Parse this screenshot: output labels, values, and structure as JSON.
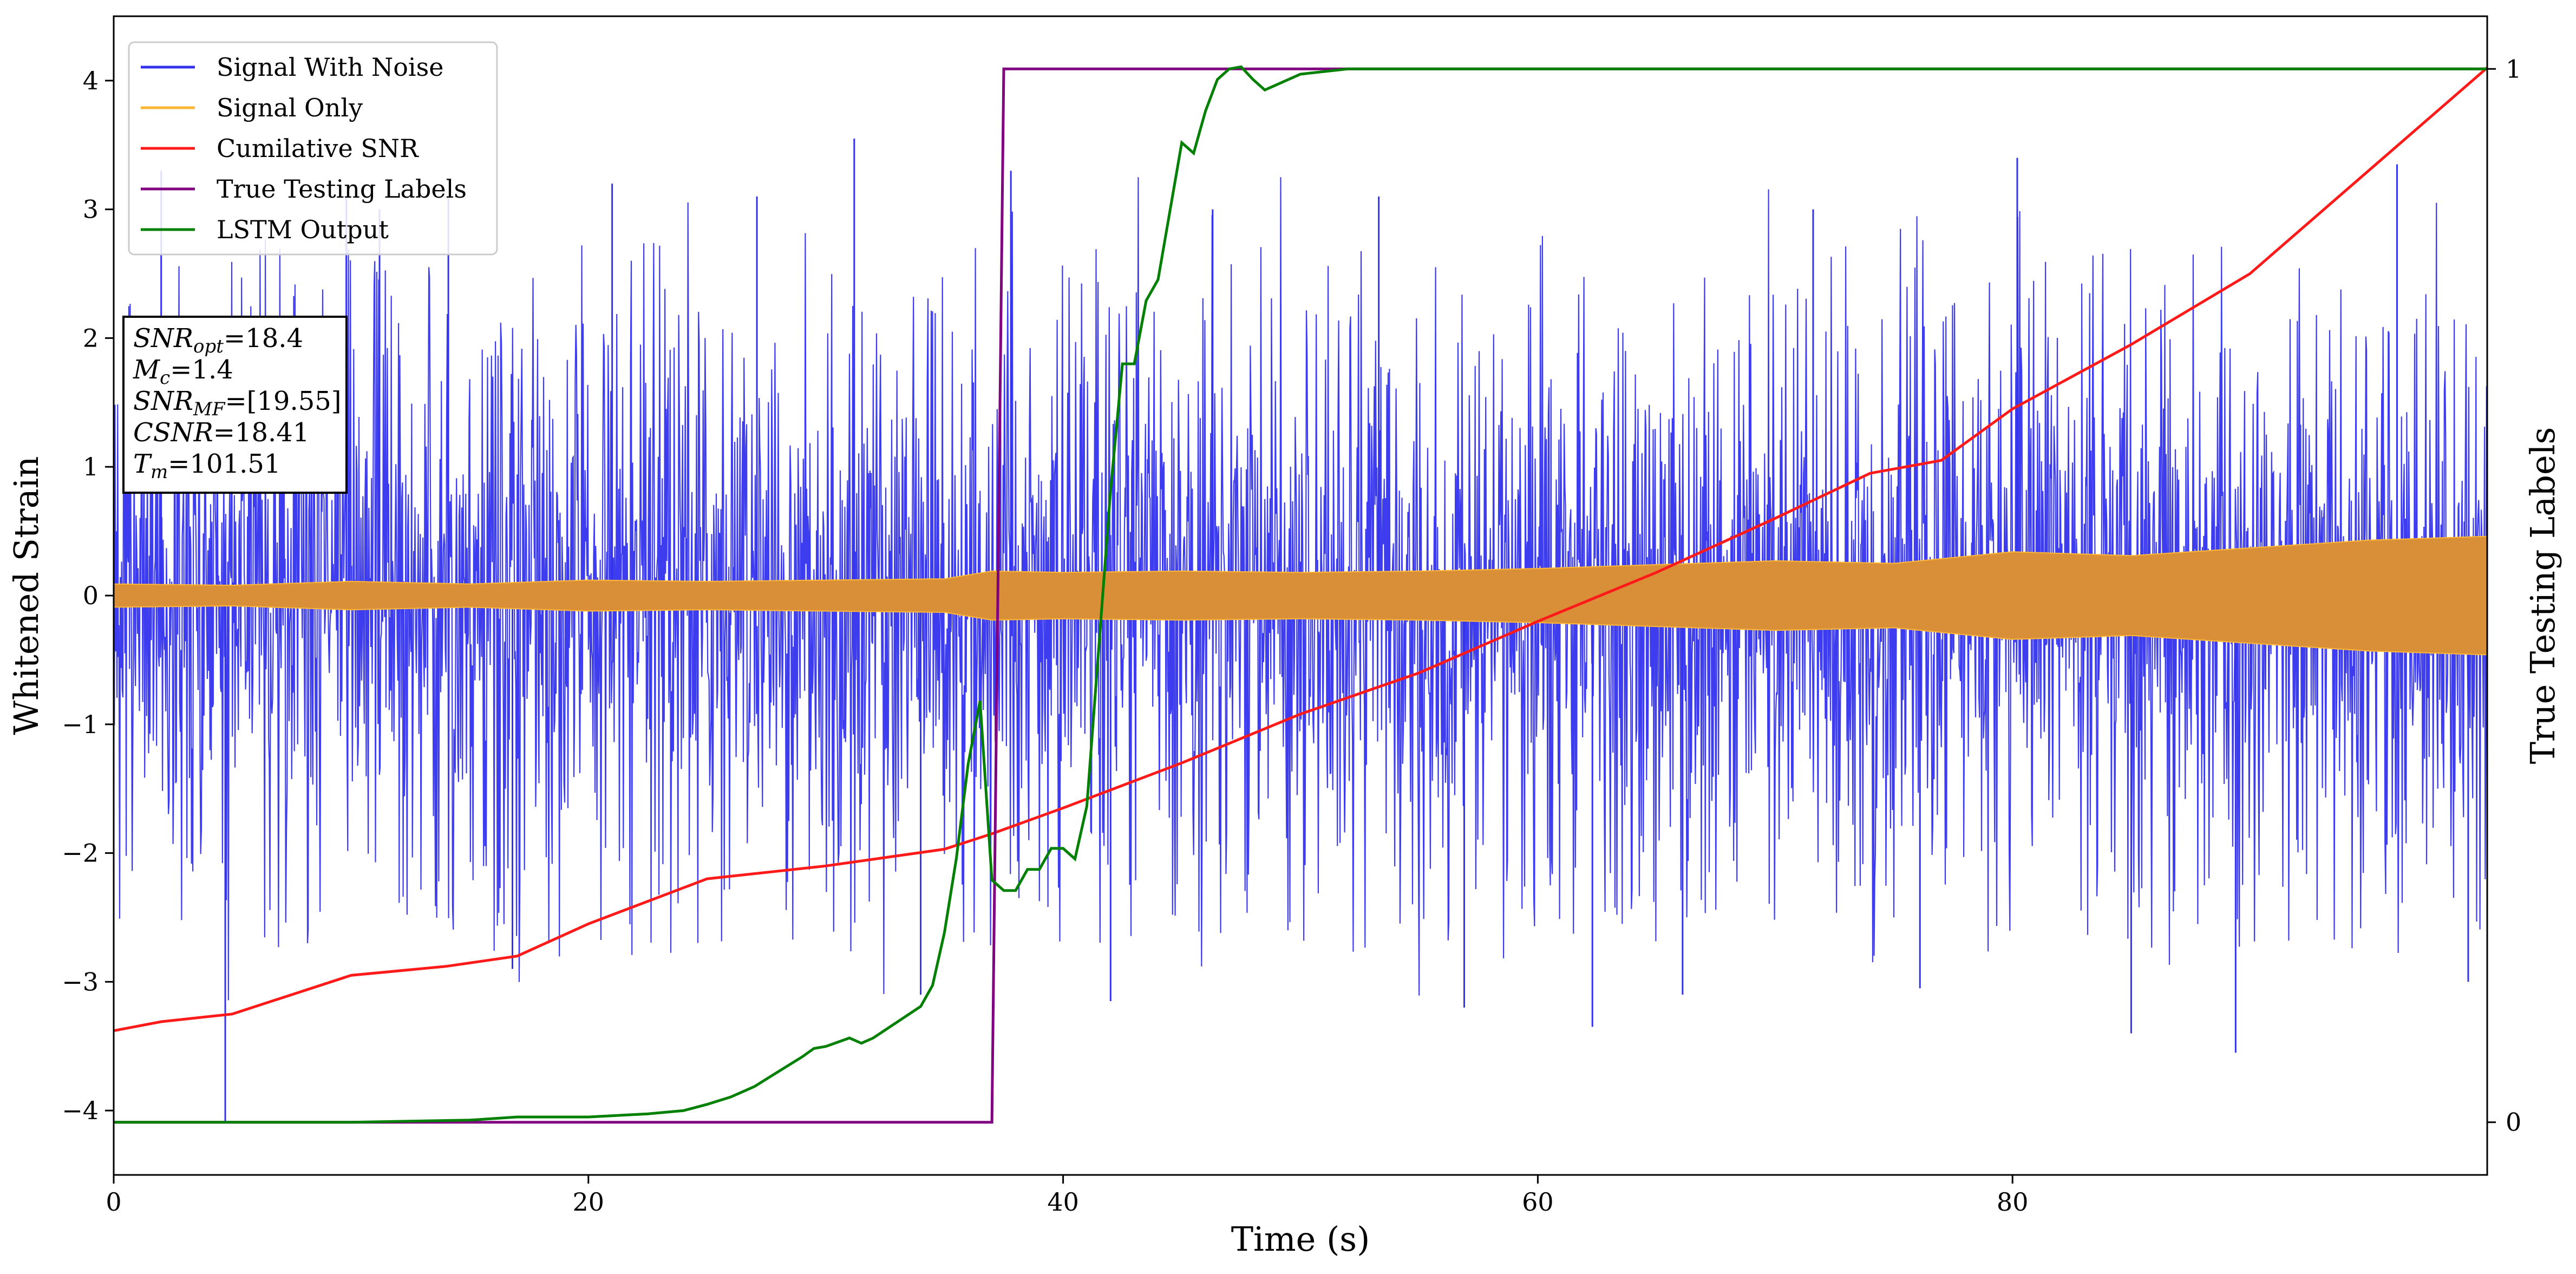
{
  "chart_data": {
    "type": "line",
    "xlabel": "Time (s)",
    "ylabel_left": "Whitened Strain",
    "ylabel_right": "True Testing Labels",
    "xlim": [
      0,
      100
    ],
    "ylim_left": [
      -4.5,
      4.5
    ],
    "ylim_right": [
      -0.05,
      1.05
    ],
    "x_ticks": [
      0,
      20,
      40,
      60,
      80
    ],
    "x_tick_labels": [
      "0",
      "20",
      "40",
      "60",
      "80"
    ],
    "y_ticks_left": [
      -4,
      -3,
      -2,
      -1,
      0,
      1,
      2,
      3,
      4
    ],
    "y_tick_labels_left": [
      "−4",
      "−3",
      "−2",
      "−1",
      "0",
      "1",
      "2",
      "3",
      "4"
    ],
    "y_ticks_right": [
      0,
      1
    ],
    "y_tick_labels_right": [
      "0",
      "1"
    ],
    "grid": false,
    "legend_position": "top-left",
    "colors": {
      "signal_with_noise": "#3333ee",
      "signal_only": "#ffb733",
      "signal_only_fill": "#d88f38",
      "cumulative_snr": "#ff1a1a",
      "true_labels": "#800080",
      "lstm_output": "#008000"
    },
    "legend": [
      {
        "label": "Signal With Noise",
        "color": "#3333ee"
      },
      {
        "label": "Signal Only",
        "color": "#ffb733"
      },
      {
        "label": "Cumilative SNR",
        "color": "#ff1a1a"
      },
      {
        "label": "True Testing Labels",
        "color": "#800080"
      },
      {
        "label": "LSTM Output",
        "color": "#008000"
      }
    ],
    "annotation_box": [
      {
        "main": "SNR",
        "sub": "opt",
        "value": "=18.4"
      },
      {
        "main": "M",
        "sub": "c",
        "value": "=1.4"
      },
      {
        "main": "SNR",
        "sub": "MF",
        "value": "=[19.55]"
      },
      {
        "main": "CSNR",
        "sub": "",
        "value": "=18.41"
      },
      {
        "main": "T",
        "sub": "m",
        "value": "=101.51"
      }
    ],
    "series": [
      {
        "name": "Signal With Noise",
        "axis": "left",
        "description_envelope": {
          "x": [
            0,
            5,
            10,
            20,
            30,
            40,
            50,
            60,
            70,
            80,
            90,
            100
          ],
          "upper_typical": [
            1.8,
            1.9,
            1.8,
            1.9,
            1.9,
            1.8,
            1.9,
            1.9,
            1.9,
            1.9,
            1.9,
            1.8
          ],
          "lower_typical": [
            -1.8,
            -1.9,
            -1.8,
            -1.9,
            -1.9,
            -1.8,
            -1.9,
            -1.9,
            -1.9,
            -1.9,
            -1.9,
            -1.8
          ],
          "peak_max": 3.55,
          "peak_min": -4.1
        },
        "spikes": [
          {
            "x": 2.0,
            "y": 3.3
          },
          {
            "x": 4.7,
            "y": -4.1
          },
          {
            "x": 9.8,
            "y": 3.1
          },
          {
            "x": 11.2,
            "y": 3.0
          },
          {
            "x": 14.1,
            "y": 3.1
          },
          {
            "x": 16.8,
            "y": -2.9
          },
          {
            "x": 21.0,
            "y": 3.2
          },
          {
            "x": 27.1,
            "y": 3.1
          },
          {
            "x": 31.2,
            "y": 3.55
          },
          {
            "x": 34.0,
            "y": -3.1
          },
          {
            "x": 37.8,
            "y": 3.3
          },
          {
            "x": 42.0,
            "y": -3.15
          },
          {
            "x": 46.3,
            "y": 3.0
          },
          {
            "x": 53.3,
            "y": 3.1
          },
          {
            "x": 56.9,
            "y": -3.2
          },
          {
            "x": 62.3,
            "y": -3.35
          },
          {
            "x": 66.1,
            "y": -3.1
          },
          {
            "x": 71.6,
            "y": 3.0
          },
          {
            "x": 76.1,
            "y": -3.05
          },
          {
            "x": 80.2,
            "y": 3.4
          },
          {
            "x": 85.0,
            "y": -3.4
          },
          {
            "x": 89.4,
            "y": -3.55
          },
          {
            "x": 96.2,
            "y": 3.35
          },
          {
            "x": 99.2,
            "y": -3.0
          }
        ]
      },
      {
        "name": "Signal Only",
        "axis": "left",
        "x": [
          0,
          5,
          10,
          15,
          20,
          25,
          30,
          35,
          37,
          40,
          45,
          50,
          55,
          60,
          65,
          70,
          75,
          80,
          85,
          90,
          95,
          100
        ],
        "amplitude": [
          0.09,
          0.08,
          0.11,
          0.09,
          0.12,
          0.11,
          0.12,
          0.13,
          0.19,
          0.18,
          0.19,
          0.18,
          0.19,
          0.21,
          0.24,
          0.27,
          0.25,
          0.34,
          0.31,
          0.37,
          0.43,
          0.46
        ]
      },
      {
        "name": "Cumilative SNR",
        "axis": "left",
        "x": [
          0,
          2,
          5,
          7.5,
          10,
          14,
          17,
          20,
          25,
          30,
          35,
          37,
          40,
          45,
          50,
          55,
          60,
          65,
          70,
          74,
          77,
          80,
          85,
          90,
          95,
          100
        ],
        "y": [
          -3.38,
          -3.31,
          -3.25,
          -3.1,
          -2.95,
          -2.88,
          -2.8,
          -2.55,
          -2.2,
          -2.1,
          -1.97,
          -1.85,
          -1.65,
          -1.3,
          -0.92,
          -0.6,
          -0.2,
          0.18,
          0.6,
          0.95,
          1.05,
          1.45,
          1.95,
          2.5,
          3.3,
          4.1
        ]
      },
      {
        "name": "True Testing Labels",
        "axis": "right",
        "x": [
          0,
          37.0,
          37.5,
          100
        ],
        "y": [
          0,
          0,
          1,
          1
        ]
      },
      {
        "name": "LSTM Output",
        "axis": "right",
        "x": [
          0,
          10,
          15,
          17,
          20,
          22.5,
          24,
          25,
          26,
          27,
          28,
          29,
          29.5,
          30,
          31,
          31.5,
          32,
          33,
          34,
          34.5,
          35,
          35.5,
          36,
          36.5,
          37,
          37.5,
          38,
          38.5,
          39,
          39.5,
          40,
          40.5,
          41,
          41.5,
          42,
          42.5,
          43,
          43.5,
          44,
          45,
          45.5,
          46,
          46.5,
          47,
          47.5,
          48,
          48.5,
          50,
          52,
          55,
          60,
          65,
          70,
          80,
          100
        ],
        "y": [
          0,
          0,
          0.002,
          0.005,
          0.005,
          0.008,
          0.011,
          0.017,
          0.024,
          0.034,
          0.048,
          0.062,
          0.07,
          0.072,
          0.08,
          0.075,
          0.08,
          0.095,
          0.11,
          0.13,
          0.18,
          0.25,
          0.34,
          0.4,
          0.23,
          0.22,
          0.22,
          0.24,
          0.24,
          0.26,
          0.26,
          0.25,
          0.3,
          0.45,
          0.6,
          0.72,
          0.72,
          0.78,
          0.8,
          0.93,
          0.92,
          0.96,
          0.99,
          1.0,
          1.002,
          0.99,
          0.98,
          0.995,
          1.0,
          1.0,
          1.0,
          1.0,
          1.0,
          1.0,
          1.0
        ]
      }
    ]
  }
}
